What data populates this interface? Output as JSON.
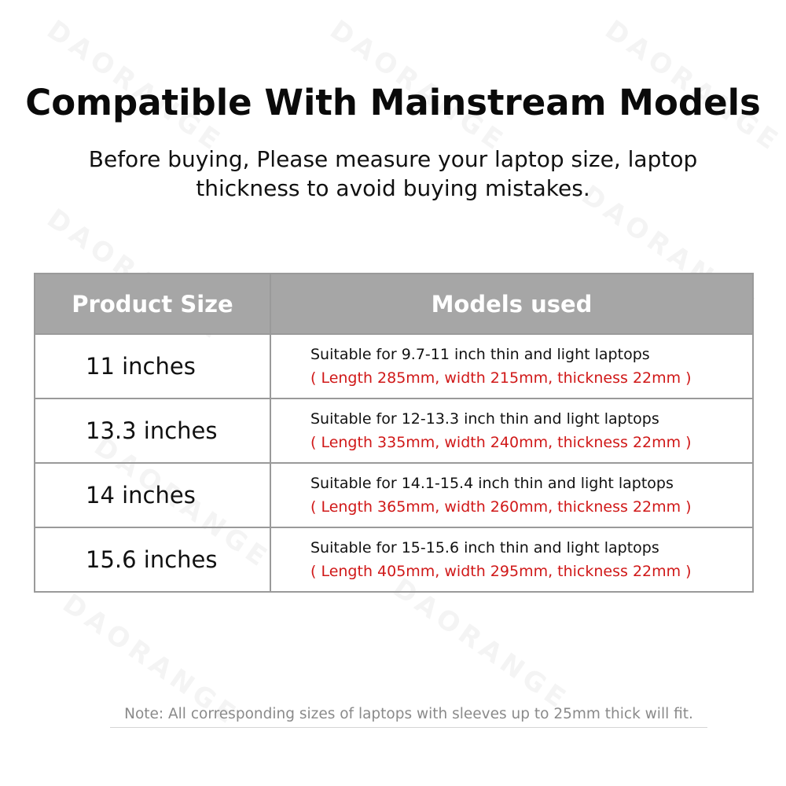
{
  "title": "Compatible With Mainstream Models",
  "subtitle": "Before buying, Please measure your laptop size, laptop thickness to avoid buying mistakes.",
  "watermark": "DAORANGE",
  "table": {
    "headers": [
      "Product Size",
      "Models used"
    ],
    "rows": [
      {
        "size": "11 inches",
        "fit": "Suitable for 9.7-11 inch thin and light laptops",
        "dims": "( Length 285mm, width 215mm, thickness 22mm )"
      },
      {
        "size": "13.3 inches",
        "fit": "Suitable for 12-13.3 inch thin and light laptops",
        "dims": "( Length 335mm, width 240mm, thickness 22mm )"
      },
      {
        "size": "14 inches",
        "fit": "Suitable for 14.1-15.4 inch thin and light laptops",
        "dims": "( Length 365mm, width 260mm, thickness 22mm )"
      },
      {
        "size": "15.6 inches",
        "fit": "Suitable for 15-15.6 inch thin and light laptops",
        "dims": "( Length 405mm, width 295mm, thickness 22mm )"
      }
    ]
  },
  "note": "Note: All corresponding sizes of laptops with sleeves up to 25mm thick will fit.",
  "colors": {
    "header_bg": "#a6a6a6",
    "dims_text": "#d01818",
    "note_text": "#8a8a8a"
  }
}
